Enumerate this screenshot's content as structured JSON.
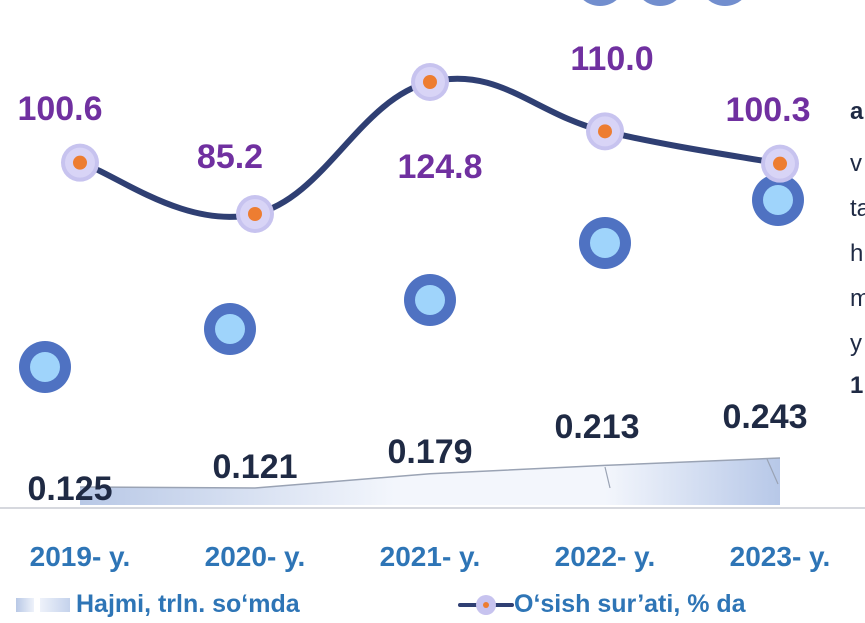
{
  "chart_data": {
    "type": "area+line",
    "categories": [
      "2019- y.",
      "2020- y.",
      "2021- y.",
      "2022- y.",
      "2023- y."
    ],
    "series": [
      {
        "name": "Hajmi, trln. so‘mda",
        "kind": "area",
        "values": [
          0.125,
          0.121,
          0.179,
          0.213,
          0.243
        ],
        "labels": [
          "0.125",
          "0.121",
          "0.179",
          "0.213",
          "0.243"
        ]
      },
      {
        "name": "O‘sish sur’ati, % da",
        "kind": "line",
        "values": [
          100.6,
          85.2,
          124.8,
          110.0,
          100.3
        ],
        "labels": [
          "100.6",
          "85.2",
          "124.8",
          "110.0",
          "100.3"
        ]
      }
    ],
    "colors": {
      "label_value": "#7030a0",
      "label_volume": "#1f2a44",
      "category_text": "#2e75b6",
      "line": "#2f3f73",
      "marker_outer": "#c7c3ef",
      "marker_inner": "#ed7d31",
      "dot_outer": "#4f72c2",
      "dot_inner": "#9fd4fb"
    }
  },
  "side_text": {
    "lines": [
      "a",
      "v",
      "ta",
      "h",
      "m",
      "y",
      "1"
    ]
  },
  "legend": {
    "area_label": "Hajmi, trln. so‘mda",
    "line_label": "O‘sish sur’ati, % da"
  }
}
